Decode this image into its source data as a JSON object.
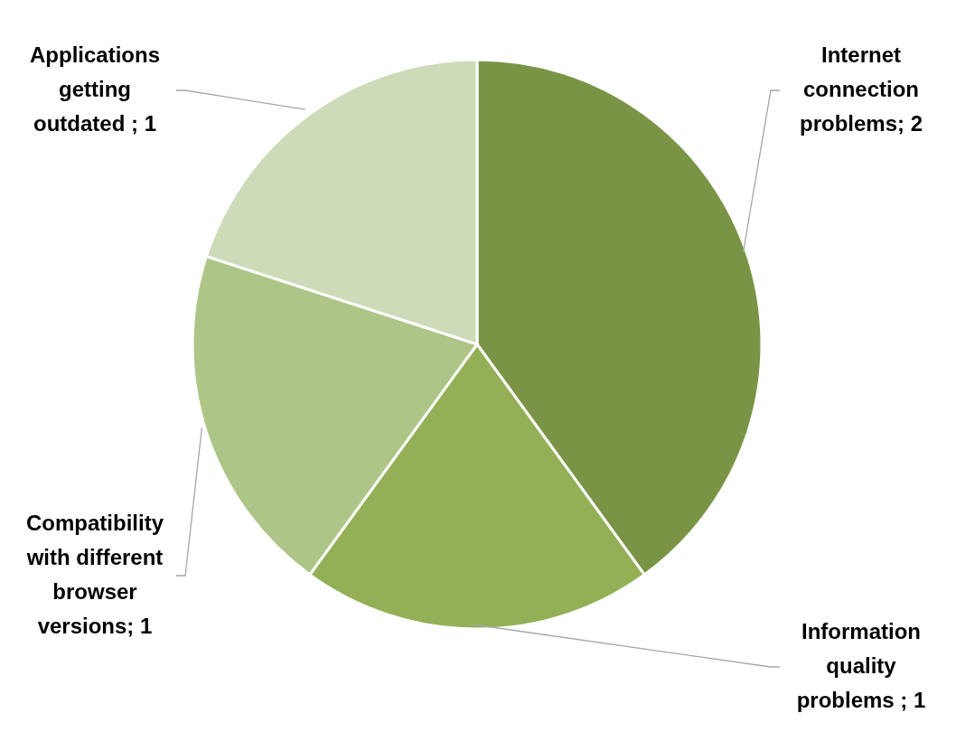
{
  "chart_data": {
    "type": "pie",
    "categories": [
      "Internet connection problems",
      "Information quality problems",
      "Compatibility with different browser versions",
      "Applications getting outdated"
    ],
    "values": [
      2,
      1,
      1,
      1
    ],
    "value_labels": [
      "; 2",
      " ; 1",
      "; 1",
      " ; 1"
    ],
    "colors": [
      "#7a9446",
      "#93b057",
      "#adc687",
      "#cddbb9"
    ]
  }
}
